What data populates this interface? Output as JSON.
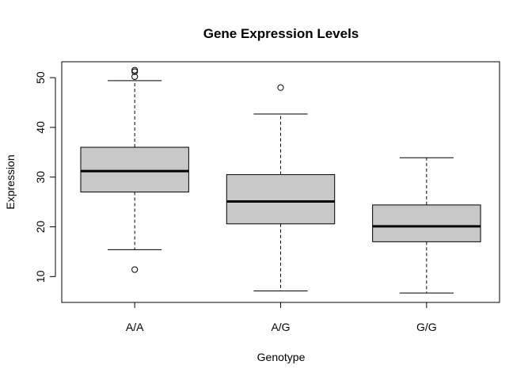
{
  "chart_data": {
    "type": "boxplot",
    "title": "Gene Expression Levels",
    "xlabel": "Genotype",
    "ylabel": "Expression",
    "ylim": [
      4.8,
      53.2
    ],
    "yticks": [
      10,
      20,
      30,
      40,
      50
    ],
    "grid": false,
    "box_fill": "#c8c8c8",
    "categories": [
      "A/A",
      "A/G",
      "G/G"
    ],
    "boxes": [
      {
        "category": "A/A",
        "whisker_low": 15.4,
        "q1": 27.0,
        "median": 31.2,
        "q3": 36.0,
        "whisker_high": 49.4,
        "outliers": [
          11.4,
          50.2,
          51.2,
          51.5
        ]
      },
      {
        "category": "A/G",
        "whisker_low": 7.1,
        "q1": 20.6,
        "median": 25.1,
        "q3": 30.5,
        "whisker_high": 42.7,
        "outliers": [
          48.0
        ]
      },
      {
        "category": "G/G",
        "whisker_low": 6.7,
        "q1": 17.0,
        "median": 20.1,
        "q3": 24.4,
        "whisker_high": 33.9,
        "outliers": []
      }
    ]
  }
}
